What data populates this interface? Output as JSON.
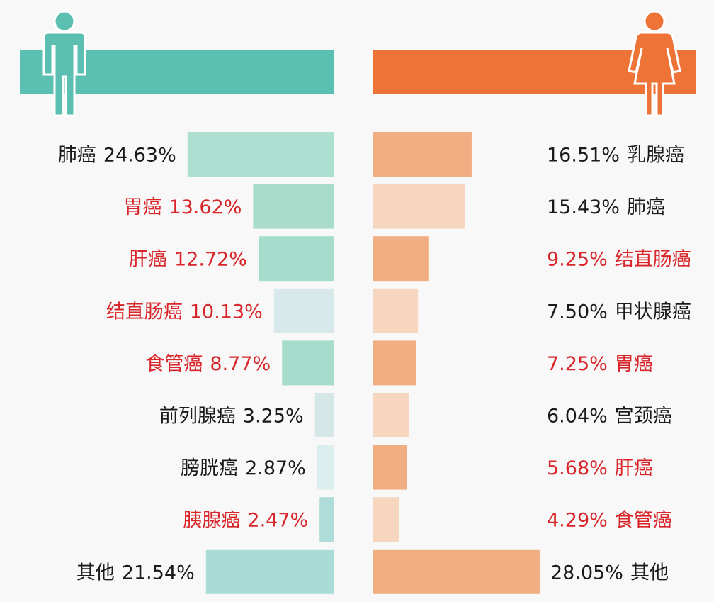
{
  "chart_data": [
    {
      "type": "bar",
      "orientation": "horizontal",
      "direction": "leftward",
      "gender_icon": "male-icon",
      "header_color": "#5bbfb2",
      "categories": [
        "肺癌",
        "胃癌",
        "肝癌",
        "结直肠癌",
        "食管癌",
        "前列腺癌",
        "膀胱癌",
        "胰腺癌",
        "其他"
      ],
      "values": [
        24.63,
        13.62,
        12.72,
        10.13,
        8.77,
        3.25,
        2.87,
        2.47,
        21.54
      ],
      "value_labels": [
        "24.63%",
        "13.62%",
        "12.72%",
        "10.13%",
        "8.77%",
        "3.25%",
        "2.87%",
        "2.47%",
        "21.54%"
      ],
      "highlighted": [
        false,
        true,
        true,
        true,
        true,
        false,
        false,
        true,
        false
      ],
      "bar_colors": [
        "#acdfd0",
        "#a9dccb",
        "#a6dccc",
        "#d8e9ec",
        "#a6dccb",
        "#d6e7e7",
        "#dceeee",
        "#aedcd8",
        "#a9dcd6"
      ]
    },
    {
      "type": "bar",
      "orientation": "horizontal",
      "direction": "rightward",
      "gender_icon": "female-icon",
      "header_color": "#ed7436",
      "categories": [
        "乳腺癌",
        "肺癌",
        "结直肠癌",
        "甲状腺癌",
        "胃癌",
        "宫颈癌",
        "肝癌",
        "食管癌",
        "其他"
      ],
      "values": [
        16.51,
        15.43,
        9.25,
        7.5,
        7.25,
        6.04,
        5.68,
        4.29,
        28.05
      ],
      "value_labels": [
        "16.51%",
        "15.43%",
        "9.25%",
        "7.50%",
        "7.25%",
        "6.04%",
        "5.68%",
        "4.29%",
        "28.05%"
      ],
      "highlighted": [
        false,
        false,
        true,
        false,
        true,
        false,
        true,
        true,
        false
      ],
      "bar_colors": [
        "#f2ae83",
        "#f6d6bf",
        "#f2ae83",
        "#f6d6bf",
        "#f2ae83",
        "#f6d6bf",
        "#f2ae83",
        "#f6d6bf",
        "#f2ae83"
      ]
    }
  ],
  "colors": {
    "normal_text": "#1a1a1a",
    "highlight_text": "#d8252a",
    "male_icon": "#5bbfb2",
    "female_icon": "#ed7436"
  }
}
